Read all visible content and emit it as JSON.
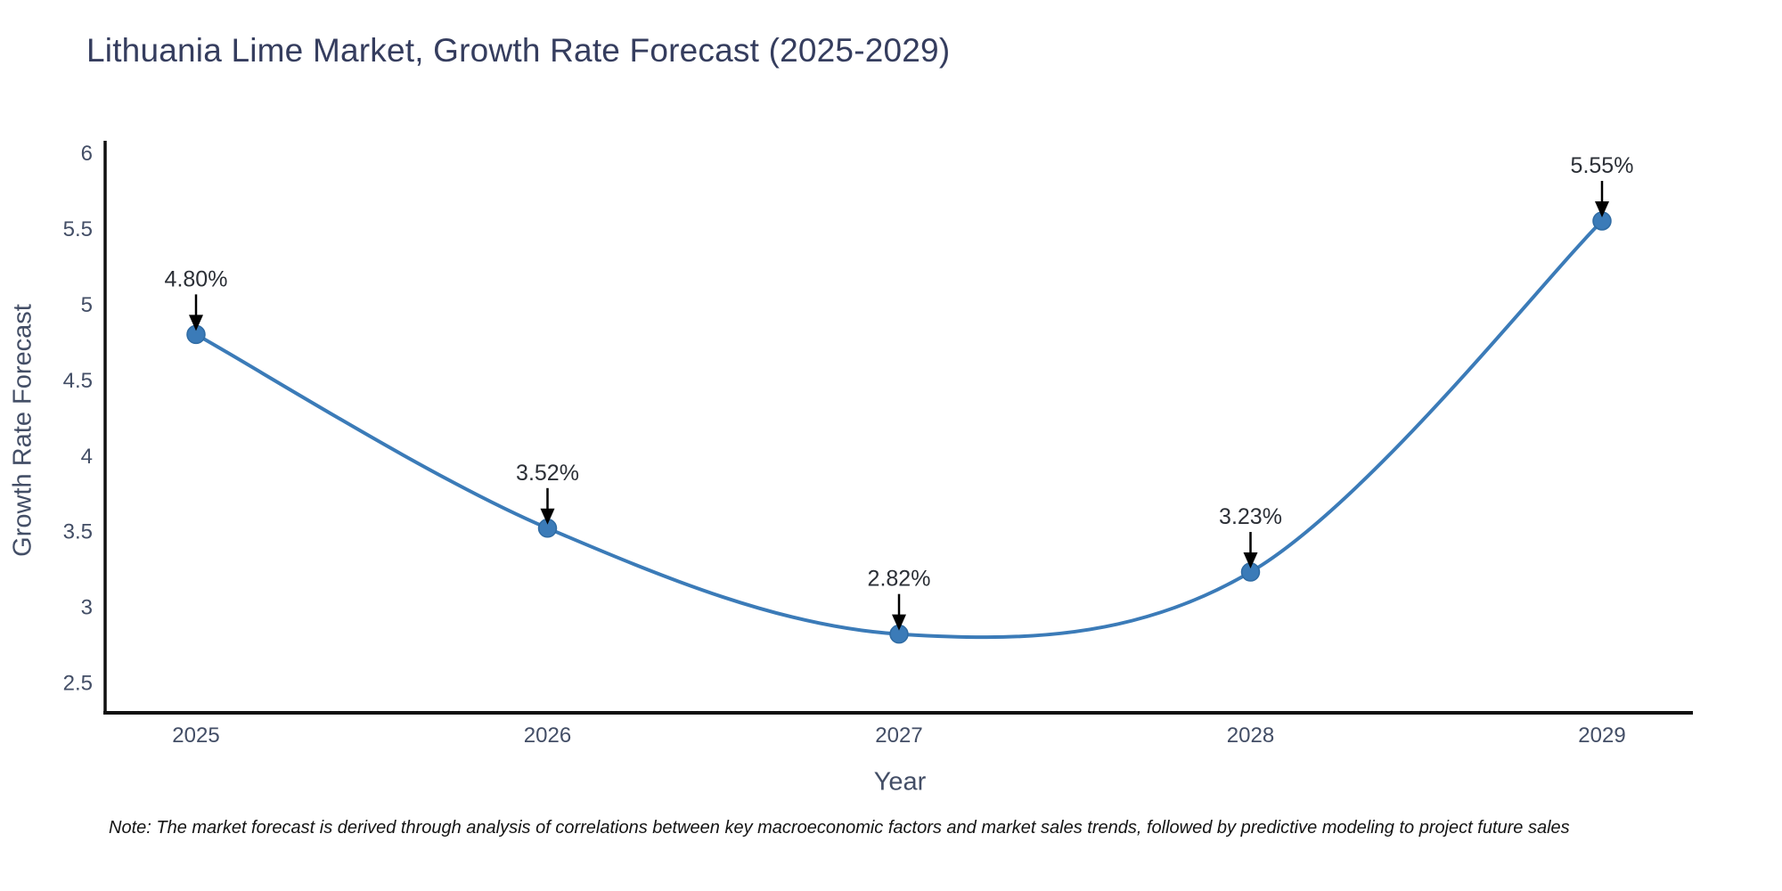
{
  "title": "Lithuania Lime Market, Growth Rate Forecast (2025-2029)",
  "note": {
    "text": "Note: The market forecast is derived through analysis of correlations between key macroeconomic factors and market sales trends, followed by predictive modeling to project future sales"
  },
  "chart_data": {
    "type": "line",
    "title": "Lithuania Lime Market, Growth Rate Forecast (2025-2029)",
    "xlabel": "Year",
    "ylabel": "Growth Rate Forecast",
    "x": [
      2025,
      2026,
      2027,
      2028,
      2029
    ],
    "y": [
      4.8,
      3.52,
      2.82,
      3.23,
      5.55
    ],
    "point_labels": [
      "4.80%",
      "3.52%",
      "2.82%",
      "3.23%",
      "5.55%"
    ],
    "yticks": [
      2.5,
      3,
      3.5,
      4,
      4.5,
      5,
      5.5,
      6
    ],
    "ylim": [
      2.3,
      6.08
    ],
    "line_shape": "spline",
    "grid": false,
    "legend": "none",
    "line_color": "#3b7bb8",
    "marker_color": "#3b7bb8",
    "marker_edge_color": "#2f6ba3",
    "axis_color": "#111111",
    "annotation_arrow_color": "#000000"
  }
}
